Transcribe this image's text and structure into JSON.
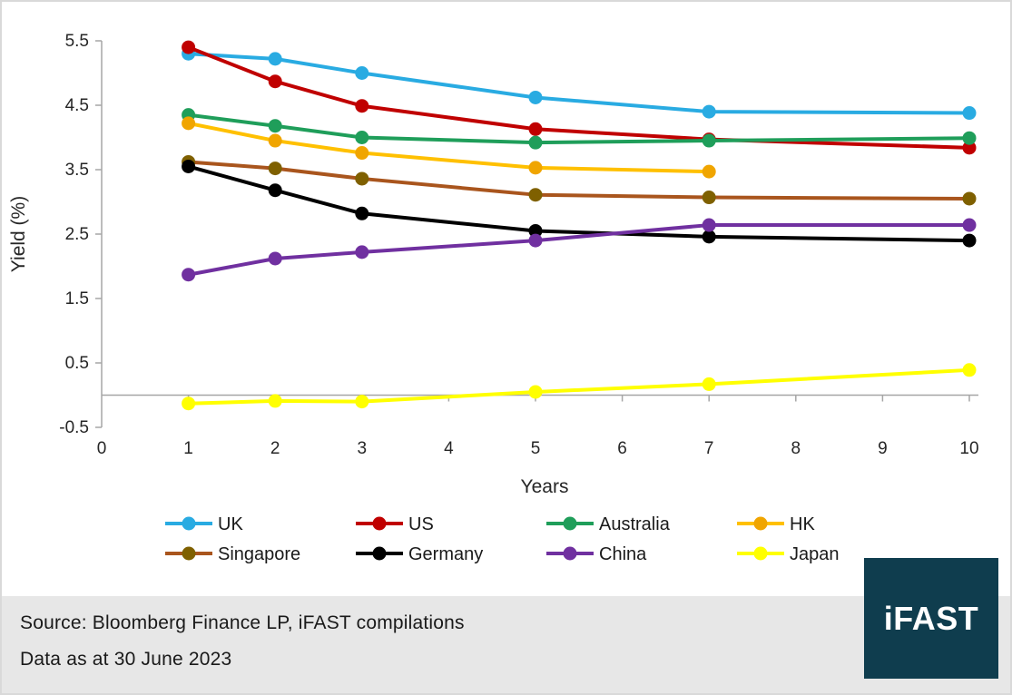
{
  "chart_data": {
    "type": "line",
    "title": "",
    "xlabel": "Years",
    "ylabel": "Yield (%)",
    "xlim": [
      0,
      10
    ],
    "ylim": [
      -0.5,
      5.5
    ],
    "x_ticks": [
      0,
      1,
      2,
      3,
      4,
      5,
      6,
      7,
      8,
      9,
      10
    ],
    "y_ticks": [
      5.5,
      4.5,
      3.5,
      2.5,
      1.5,
      0.5,
      -0.5
    ],
    "grid": false,
    "legend_position": "bottom",
    "axis_color": "#a6a6a6",
    "text_color": "#262626",
    "series": [
      {
        "name": "UK",
        "color": "#29abe2",
        "x": [
          1,
          2,
          3,
          5,
          7,
          10
        ],
        "values": [
          5.3,
          5.22,
          5.0,
          4.62,
          4.4,
          4.38
        ]
      },
      {
        "name": "US",
        "color": "#c00000",
        "x": [
          1,
          2,
          3,
          5,
          7,
          10
        ],
        "values": [
          5.4,
          4.87,
          4.49,
          4.13,
          3.97,
          3.84
        ]
      },
      {
        "name": "Australia",
        "color": "#1f9e5a",
        "x": [
          1,
          2,
          3,
          5,
          7,
          10
        ],
        "values": [
          4.35,
          4.18,
          4.0,
          3.92,
          3.95,
          3.99
        ]
      },
      {
        "name": "HK",
        "color": "#ffc000",
        "marker_color": "#f0a500",
        "x": [
          1,
          2,
          3,
          5,
          7
        ],
        "values": [
          4.22,
          3.95,
          3.76,
          3.53,
          3.47
        ]
      },
      {
        "name": "Singapore",
        "color": "#a9551d",
        "marker_color": "#7f6000",
        "x": [
          1,
          2,
          3,
          5,
          7,
          10
        ],
        "values": [
          3.62,
          3.52,
          3.36,
          3.11,
          3.07,
          3.05
        ]
      },
      {
        "name": "Germany",
        "color": "#000000",
        "x": [
          1,
          2,
          3,
          5,
          7,
          10
        ],
        "values": [
          3.55,
          3.18,
          2.82,
          2.55,
          2.46,
          2.4
        ]
      },
      {
        "name": "China",
        "color": "#7030a0",
        "x": [
          1,
          2,
          3,
          5,
          7,
          10
        ],
        "values": [
          1.87,
          2.12,
          2.22,
          2.4,
          2.64,
          2.64
        ]
      },
      {
        "name": "Japan",
        "color": "#ffff00",
        "x": [
          1,
          2,
          3,
          5,
          7,
          10
        ],
        "values": [
          -0.13,
          -0.09,
          -0.1,
          0.05,
          0.17,
          0.39
        ]
      }
    ]
  },
  "footer": {
    "source_line": "Source: Bloomberg Finance LP, iFAST compilations",
    "date_line": "Data as at 30 June 2023",
    "background": "#e7e7e7"
  },
  "logo": {
    "text": "iFAST",
    "background": "#0f3d4e",
    "text_color": "#ffffff"
  }
}
